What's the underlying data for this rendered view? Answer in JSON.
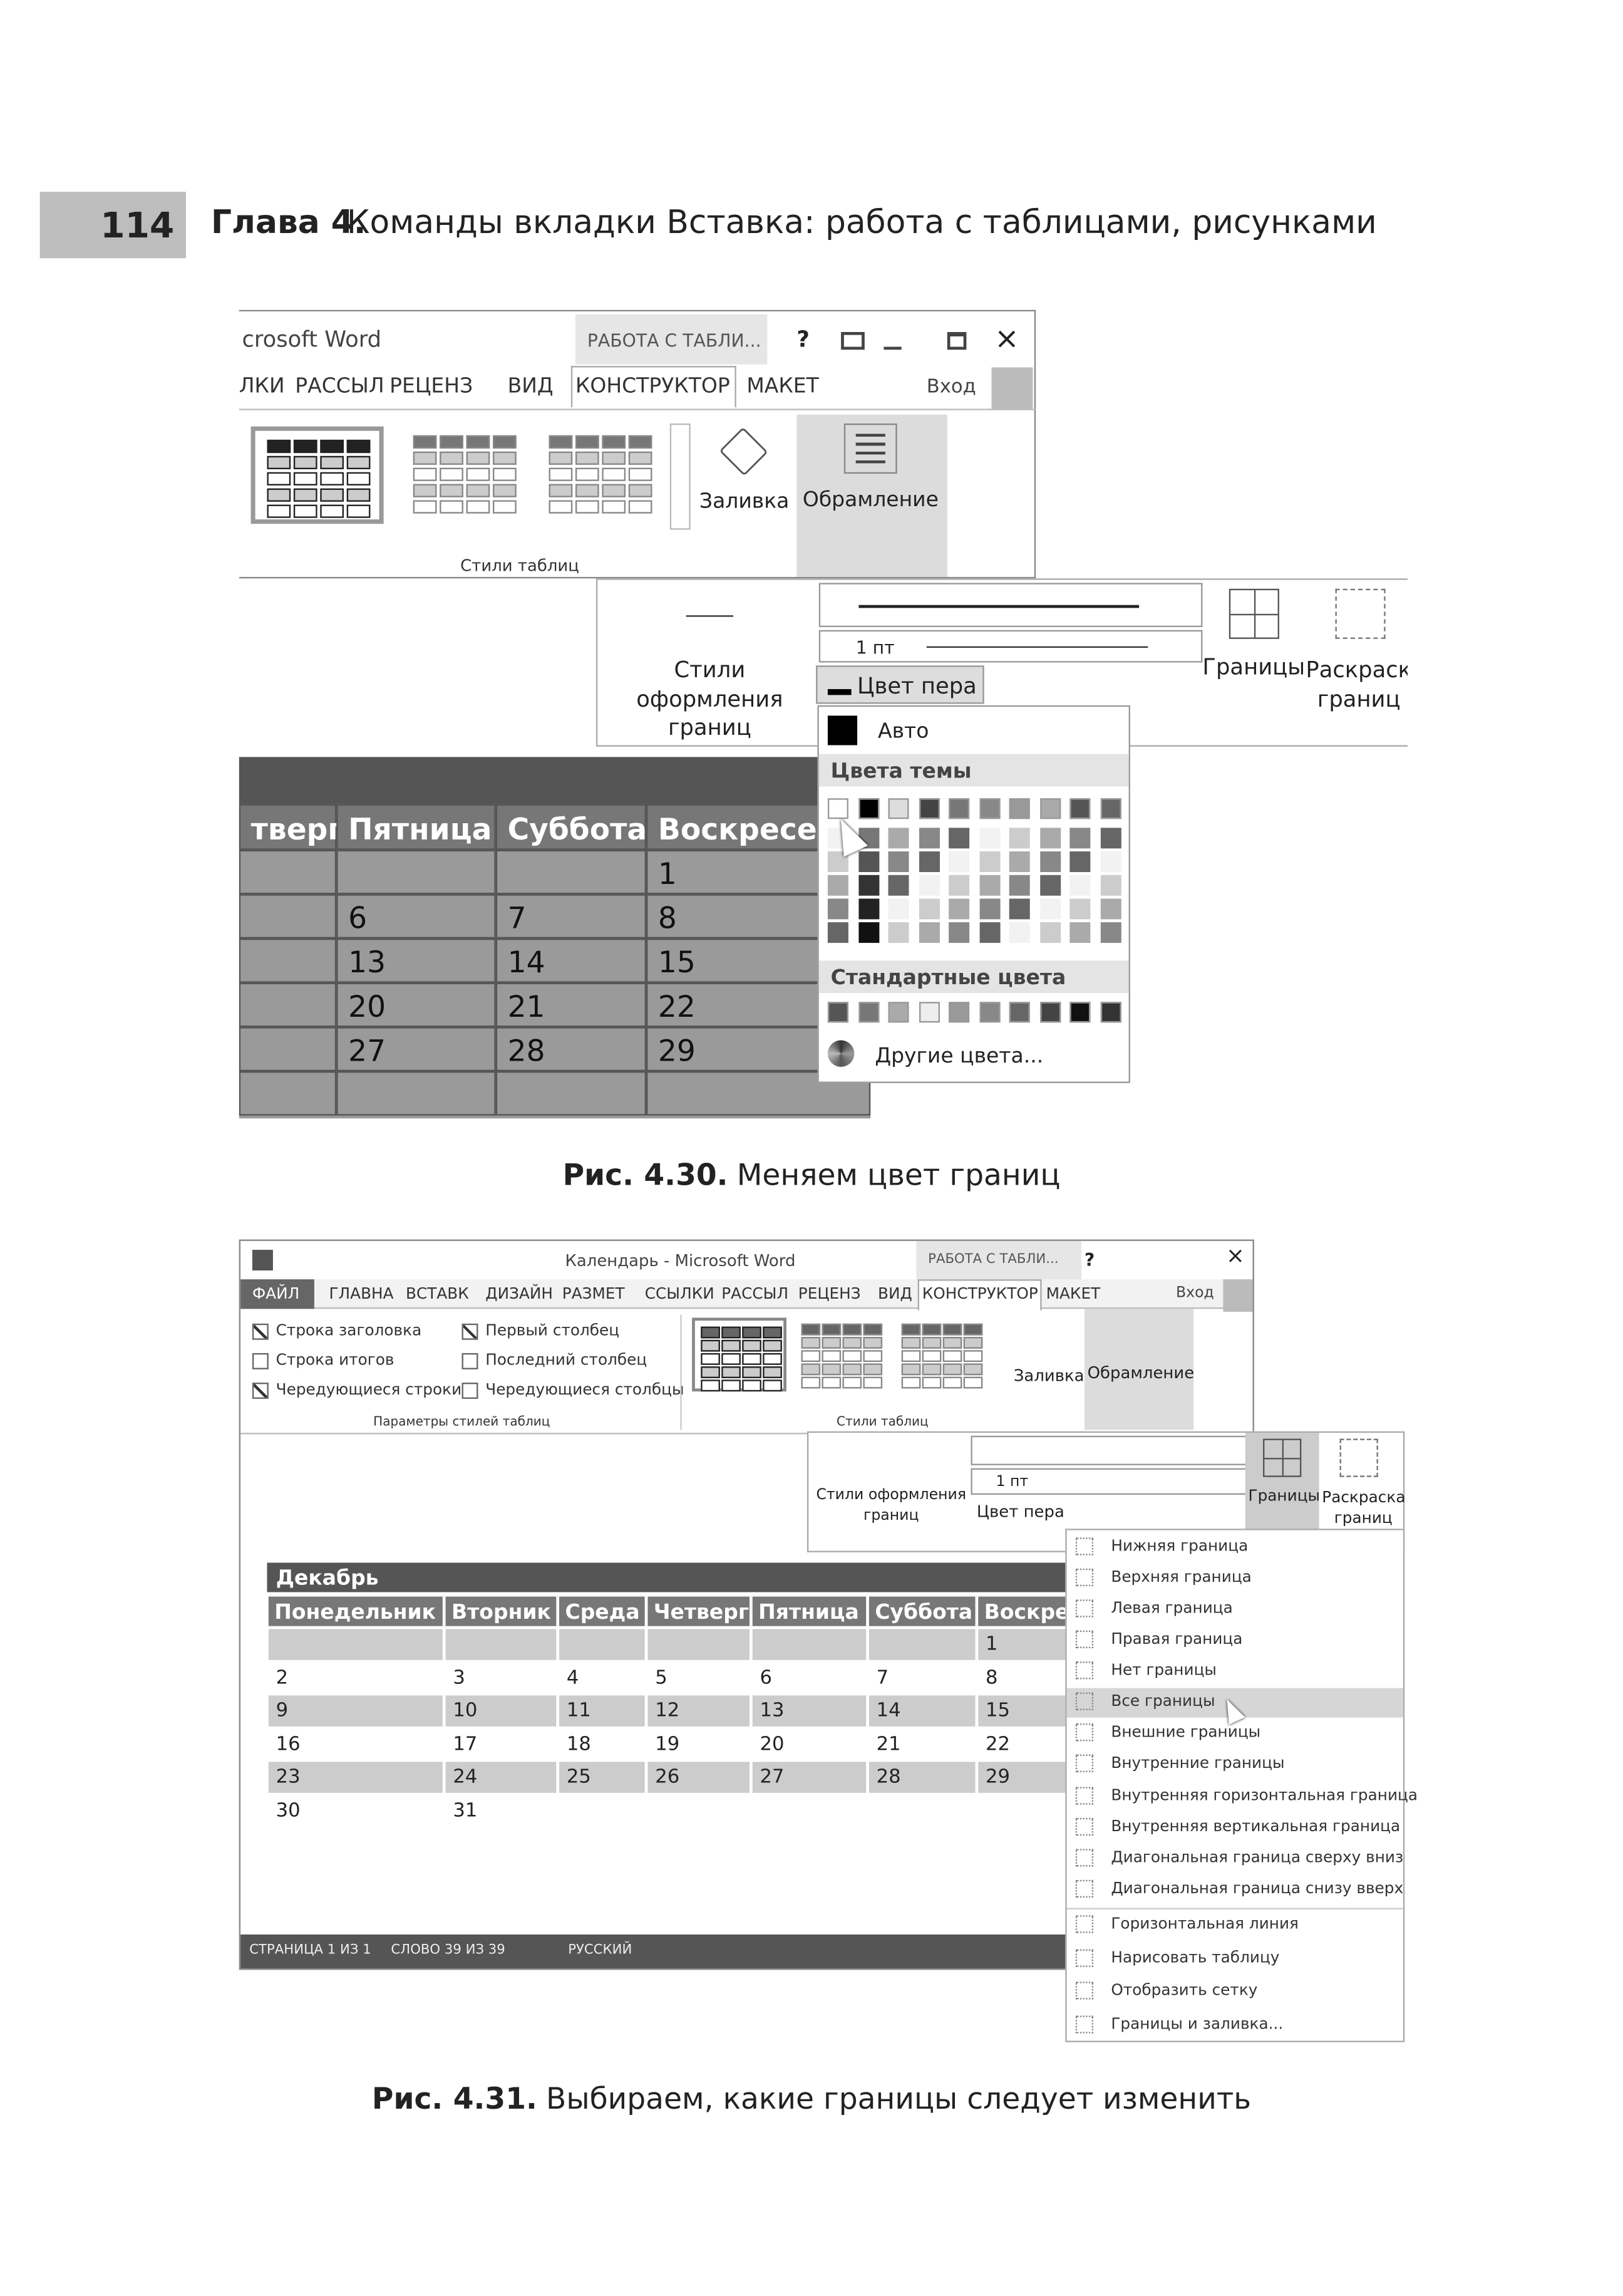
{
  "header": {
    "page_number": "114",
    "chapter": "Глава 4.",
    "title": "Команды вкладки Вставка: работа с таблицами, рисунками"
  },
  "figure_1": {
    "window_title": "crosoft Word",
    "context_tab": "РАБОТА С ТАБЛИ...",
    "help": "?",
    "tabs": [
      "ЛКИ",
      "РАССЫЛ",
      "РЕЦЕНЗ",
      "ВИД",
      "КОНСТРУКТОР",
      "МАКЕТ"
    ],
    "active_tab": 4,
    "sign_in": "Вход",
    "ribbon": {
      "shading": "Заливка",
      "borders": "Обрамление",
      "group": "Стили таблиц"
    },
    "borders_panel": {
      "border_styles": "Стили оформления границ",
      "weight": "1 пт",
      "pen_color": "Цвет пера",
      "borders": "Границы",
      "border_painter": "Раскраска границ"
    },
    "color_menu": {
      "auto": "Авто",
      "theme_colors": "Цвета темы",
      "standard_colors": "Стандартные цвета",
      "more_colors": "Другие цвета..."
    },
    "table": {
      "header": [
        "тверг",
        "Пятница",
        "Суббота",
        "Воскресен"
      ],
      "rows": [
        [
          null,
          null,
          null,
          "1"
        ],
        [
          null,
          "6",
          "7",
          "8"
        ],
        [
          null,
          "13",
          "14",
          "15"
        ],
        [
          null,
          "20",
          "21",
          "22"
        ],
        [
          null,
          "27",
          "28",
          "29"
        ],
        [
          null,
          null,
          null,
          null
        ]
      ]
    }
  },
  "caption_1": {
    "label": "Рис. 4.30.",
    "text": "Меняем цвет границ"
  },
  "figure_2": {
    "window_title": "Календарь - Microsoft Word",
    "context_tab": "РАБОТА С ТАБЛИ...",
    "help": "?",
    "tabs": [
      "ФАЙЛ",
      "ГЛАВНА",
      "ВСТАВК",
      "ДИЗАЙН",
      "РАЗМЕТ",
      "ССЫЛКИ",
      "РАССЫЛ",
      "РЕЦЕНЗ",
      "ВИД",
      "КОНСТРУКТОР",
      "МАКЕТ"
    ],
    "active_tab": 9,
    "sign_in": "Вход",
    "style_options": [
      {
        "label": "Строка заголовка",
        "checked": true
      },
      {
        "label": "Строка итогов",
        "checked": false
      },
      {
        "label": "Чередующиеся строки",
        "checked": true
      },
      {
        "label": "Первый столбец",
        "checked": true
      },
      {
        "label": "Последний столбец",
        "checked": false
      },
      {
        "label": "Чередующиеся столбцы",
        "checked": false
      }
    ],
    "ribbon": {
      "options_group": "Параметры стилей таблиц",
      "styles_group": "Стили таблиц",
      "shading": "Заливка",
      "borders": "Обрамление"
    },
    "borders_panel": {
      "border_styles": "Стили оформления границ",
      "weight": "1 пт",
      "pen_color": "Цвет пера",
      "borders": "Границы",
      "border_painter": "Раскраска границ"
    },
    "table": {
      "title": "Декабрь",
      "header": [
        "Понедельник",
        "Вторник",
        "Среда",
        "Четверг",
        "Пятница",
        "Суббота",
        "Воскре"
      ],
      "rows": [
        [
          null,
          null,
          null,
          null,
          null,
          null,
          "1"
        ],
        [
          "2",
          "3",
          "4",
          "5",
          "6",
          "7",
          "8"
        ],
        [
          "9",
          "10",
          "11",
          "12",
          "13",
          "14",
          "15"
        ],
        [
          "16",
          "17",
          "18",
          "19",
          "20",
          "21",
          "22"
        ],
        [
          "23",
          "24",
          "25",
          "26",
          "27",
          "28",
          "29"
        ],
        [
          "30",
          "31",
          null,
          null,
          null,
          null,
          null
        ]
      ]
    },
    "status_bar": [
      "СТРАНИЦА 1 ИЗ 1",
      "СЛОВО 39 ИЗ 39",
      "РУССКИЙ"
    ],
    "borders_menu": [
      "Нижняя граница",
      "Верхняя граница",
      "Левая граница",
      "Правая граница",
      "Нет границы",
      "Все границы",
      "Внешние границы",
      "Внутренние границы",
      "Внутренняя горизонтальная граница",
      "Внутренняя вертикальная граница",
      "Диагональная граница сверху вниз",
      "Диагональная граница снизу вверх",
      "Горизонтальная линия",
      "Нарисовать таблицу",
      "Отобразить сетку",
      "Границы и заливка..."
    ],
    "highlighted_item": 5
  },
  "caption_2": {
    "label": "Рис. 4.31.",
    "text": "Выбираем, какие границы следует изменить"
  }
}
